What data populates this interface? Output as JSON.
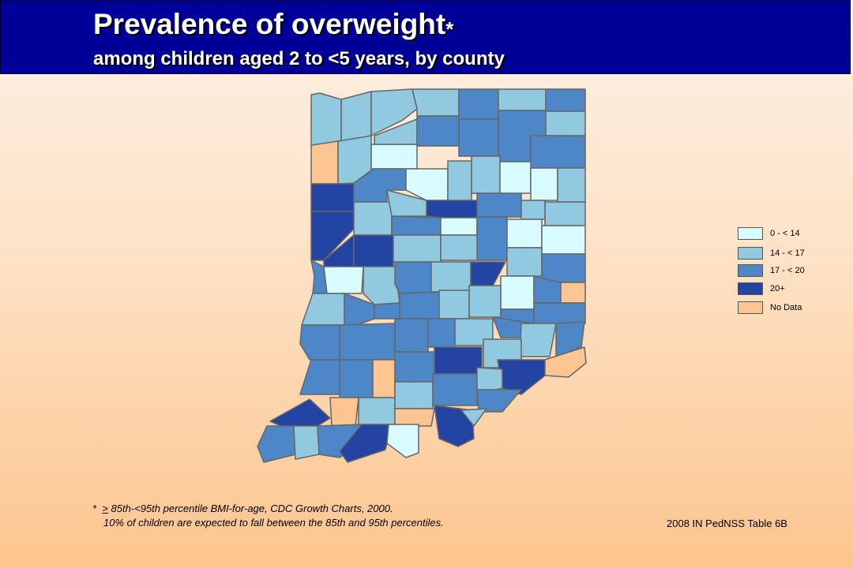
{
  "header": {
    "title": "Prevalence of overweight",
    "title_marker": "*",
    "subtitle": "among children aged 2 to <5 years, by county"
  },
  "colors": {
    "header_bg": "#000099",
    "cat_0_14": "#d7fbfe",
    "cat_14_17": "#91c9e0",
    "cat_17_20": "#4d87c7",
    "cat_20_plus": "#2444a3",
    "no_data": "#fcc591",
    "border": "#666666"
  },
  "legend": {
    "items": [
      {
        "label": "0 - < 14",
        "category": "cat_0_14"
      },
      {
        "label": "14 - < 17",
        "category": "cat_14_17"
      },
      {
        "label": "17 - < 20",
        "category": "cat_17_20"
      },
      {
        "label": "20+",
        "category": "cat_20_plus"
      },
      {
        "label": "No Data",
        "category": "no_data"
      }
    ]
  },
  "footnote": {
    "marker": "*",
    "ge_symbol": ">",
    "line1_rest": " 85th-<95th percentile BMI-for-age, CDC Growth Charts, 2000.",
    "line2": "10% of children are expected to fall between the 85th and 95th percentiles."
  },
  "source": "2008 IN PedNSS Table 6B"
}
